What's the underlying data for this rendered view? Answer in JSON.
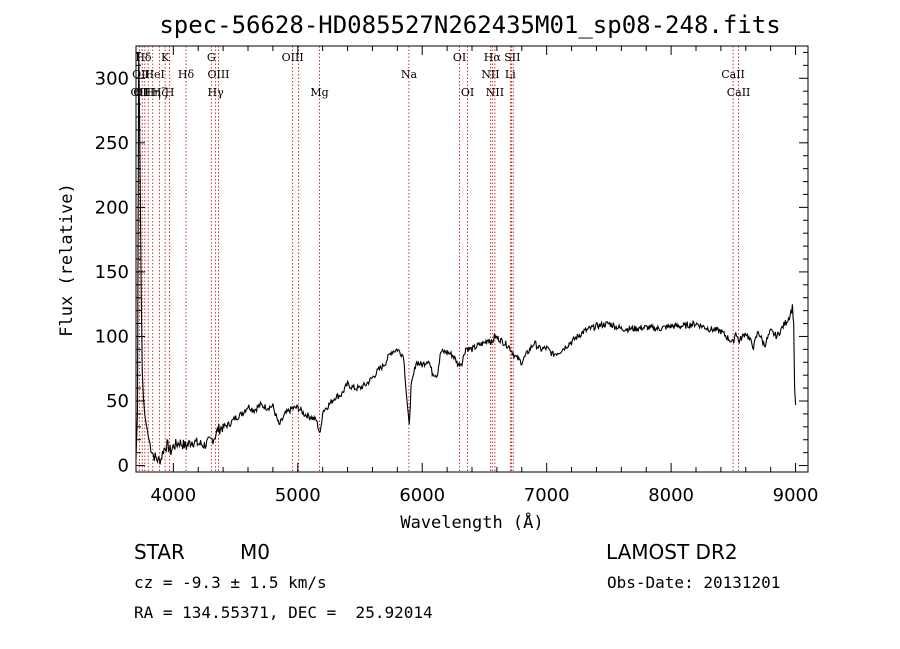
{
  "chart_data": {
    "type": "line",
    "title": "spec-56628-HD085527N262435M01_sp08-248.fits",
    "xlabel": "Wavelength (Å)",
    "ylabel": "Flux (relative)",
    "xlim": [
      3700,
      9100
    ],
    "ylim": [
      -5,
      325
    ],
    "x_ticks": [
      4000,
      5000,
      6000,
      7000,
      8000,
      9000
    ],
    "y_ticks": [
      0,
      50,
      100,
      150,
      200,
      250,
      300
    ],
    "grid": false,
    "series": [
      {
        "color": "#000000",
        "points": [
          [
            3700,
            5
          ],
          [
            3712,
            40
          ],
          [
            3722,
            320
          ],
          [
            3730,
            260
          ],
          [
            3740,
            150
          ],
          [
            3750,
            75
          ],
          [
            3760,
            52
          ],
          [
            3770,
            40
          ],
          [
            3780,
            33
          ],
          [
            3790,
            28
          ],
          [
            3800,
            22
          ],
          [
            3820,
            14
          ],
          [
            3840,
            8
          ],
          [
            3860,
            6
          ],
          [
            3880,
            4
          ],
          [
            3900,
            5
          ],
          [
            3920,
            12
          ],
          [
            3950,
            16
          ],
          [
            3980,
            11
          ],
          [
            4000,
            15
          ],
          [
            4050,
            18
          ],
          [
            4100,
            15
          ],
          [
            4150,
            19
          ],
          [
            4200,
            17
          ],
          [
            4250,
            16
          ],
          [
            4300,
            19
          ],
          [
            4330,
            22
          ],
          [
            4360,
            28
          ],
          [
            4400,
            30
          ],
          [
            4450,
            32
          ],
          [
            4500,
            37
          ],
          [
            4550,
            40
          ],
          [
            4600,
            46
          ],
          [
            4650,
            43
          ],
          [
            4700,
            47
          ],
          [
            4750,
            45
          ],
          [
            4800,
            46
          ],
          [
            4850,
            31
          ],
          [
            4900,
            40
          ],
          [
            4950,
            44
          ],
          [
            5000,
            45
          ],
          [
            5050,
            40
          ],
          [
            5100,
            38
          ],
          [
            5150,
            35
          ],
          [
            5180,
            24
          ],
          [
            5200,
            42
          ],
          [
            5250,
            47
          ],
          [
            5300,
            53
          ],
          [
            5350,
            55
          ],
          [
            5400,
            63
          ],
          [
            5450,
            60
          ],
          [
            5500,
            60
          ],
          [
            5550,
            63
          ],
          [
            5600,
            68
          ],
          [
            5650,
            74
          ],
          [
            5700,
            79
          ],
          [
            5750,
            88
          ],
          [
            5800,
            90
          ],
          [
            5850,
            85
          ],
          [
            5880,
            48
          ],
          [
            5895,
            30
          ],
          [
            5910,
            60
          ],
          [
            5950,
            80
          ],
          [
            6000,
            78
          ],
          [
            6050,
            82
          ],
          [
            6080,
            72
          ],
          [
            6120,
            70
          ],
          [
            6150,
            88
          ],
          [
            6200,
            88
          ],
          [
            6250,
            85
          ],
          [
            6290,
            78
          ],
          [
            6320,
            80
          ],
          [
            6350,
            91
          ],
          [
            6400,
            90
          ],
          [
            6450,
            93
          ],
          [
            6500,
            95
          ],
          [
            6530,
            98
          ],
          [
            6563,
            95
          ],
          [
            6580,
            100
          ],
          [
            6620,
            98
          ],
          [
            6660,
            95
          ],
          [
            6700,
            92
          ],
          [
            6750,
            84
          ],
          [
            6800,
            80
          ],
          [
            6850,
            88
          ],
          [
            6900,
            95
          ],
          [
            6950,
            90
          ],
          [
            7000,
            91
          ],
          [
            7050,
            86
          ],
          [
            7100,
            88
          ],
          [
            7150,
            92
          ],
          [
            7200,
            96
          ],
          [
            7300,
            104
          ],
          [
            7400,
            108
          ],
          [
            7500,
            110
          ],
          [
            7600,
            106
          ],
          [
            7700,
            106
          ],
          [
            7800,
            107
          ],
          [
            7900,
            106
          ],
          [
            8000,
            108
          ],
          [
            8100,
            108
          ],
          [
            8200,
            110
          ],
          [
            8300,
            106
          ],
          [
            8400,
            104
          ],
          [
            8498,
            95
          ],
          [
            8520,
            104
          ],
          [
            8542,
            96
          ],
          [
            8600,
            103
          ],
          [
            8662,
            92
          ],
          [
            8700,
            104
          ],
          [
            8750,
            93
          ],
          [
            8800,
            104
          ],
          [
            8850,
            100
          ],
          [
            8900,
            108
          ],
          [
            8950,
            115
          ],
          [
            8975,
            123
          ],
          [
            8985,
            110
          ],
          [
            8992,
            60
          ],
          [
            9000,
            47
          ]
        ]
      }
    ],
    "line_ids": [
      {
        "wave": 3727,
        "row": 0,
        "text": "OII"
      },
      {
        "wave": 3750,
        "row": 0,
        "text": "OII"
      },
      {
        "wave": 3835,
        "row": 0,
        "text": "Hη"
      },
      {
        "wave": 3889,
        "row": 0,
        "text": "Hζ"
      },
      {
        "wave": 3970,
        "row": 0,
        "text": "H"
      },
      {
        "wave": 4340,
        "row": 0,
        "text": "Hγ"
      },
      {
        "wave": 5175,
        "row": 0,
        "text": "Mg"
      },
      {
        "wave": 6364,
        "row": 0,
        "text": "OI"
      },
      {
        "wave": 6584,
        "row": 0,
        "text": "NII"
      },
      {
        "wave": 8542,
        "row": 0,
        "text": "CaII"
      },
      {
        "wave": 3740,
        "row": 1,
        "text": "OII"
      },
      {
        "wave": 3850,
        "row": 1,
        "text": "HeI"
      },
      {
        "wave": 4102,
        "row": 1,
        "text": "Hδ"
      },
      {
        "wave": 4363,
        "row": 1,
        "text": "OIII"
      },
      {
        "wave": 5893,
        "row": 1,
        "text": "Na"
      },
      {
        "wave": 6548,
        "row": 1,
        "text": "NII"
      },
      {
        "wave": 6708,
        "row": 1,
        "text": "Li"
      },
      {
        "wave": 8498,
        "row": 1,
        "text": "CaII"
      },
      {
        "wave": 3760,
        "row": 2,
        "text": "Hδ"
      },
      {
        "wave": 3934,
        "row": 2,
        "text": "K"
      },
      {
        "wave": 4305,
        "row": 2,
        "text": "G"
      },
      {
        "wave": 4959,
        "row": 2,
        "text": "OIII"
      },
      {
        "wave": 6300,
        "row": 2,
        "text": "OI"
      },
      {
        "wave": 6563,
        "row": 2,
        "text": "Hα"
      },
      {
        "wave": 6724,
        "row": 2,
        "text": "SII"
      }
    ],
    "line_marker_color": "#c00000",
    "marker_waves": [
      3727,
      3750,
      3771,
      3798,
      3835,
      3889,
      3934,
      3970,
      4102,
      4305,
      4340,
      4363,
      4959,
      5007,
      5175,
      5893,
      6300,
      6364,
      6548,
      6563,
      6584,
      6708,
      6717,
      6731,
      8498,
      8542
    ]
  },
  "info": {
    "object_class": "STAR",
    "subclass": "M0",
    "survey": "LAMOST DR2",
    "cz": "cz = -9.3 ± 1.5 km/s",
    "obs_date": "Obs-Date: 20131201",
    "coords": "RA = 134.55371, DEC =  25.92014"
  }
}
